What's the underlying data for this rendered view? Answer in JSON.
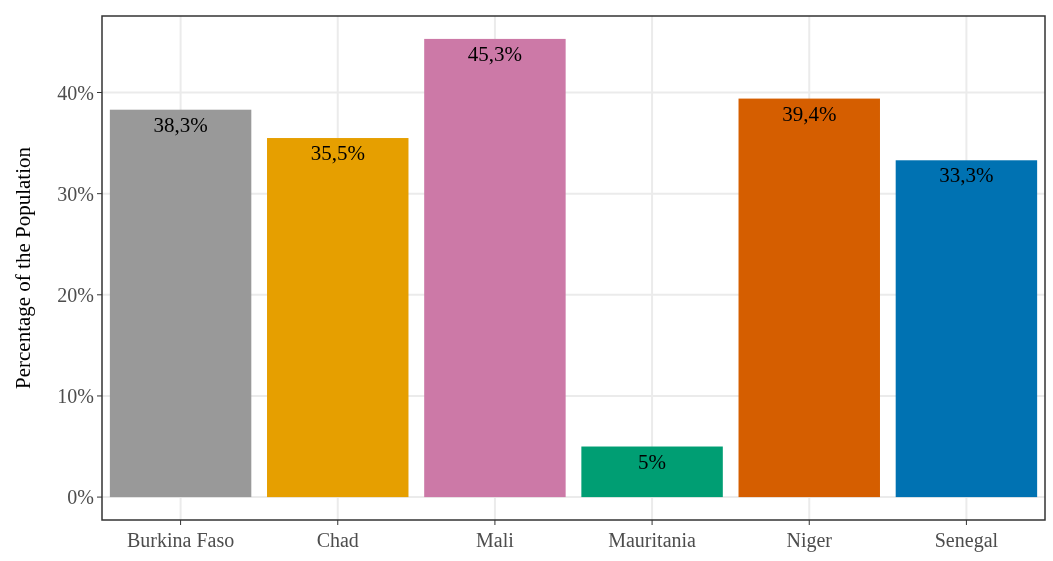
{
  "chart_data": {
    "type": "bar",
    "ylabel": "Percentage of the Population",
    "categories": [
      "Burkina Faso",
      "Chad",
      "Mali",
      "Mauritania",
      "Niger",
      "Senegal"
    ],
    "values": [
      38.3,
      35.5,
      45.3,
      5,
      39.4,
      33.3
    ],
    "colors": [
      "#999999",
      "#e69f00",
      "#cc79a7",
      "#009e73",
      "#d55e00",
      "#0072b2"
    ],
    "value_labels": [
      "38,3%",
      "35,5%",
      "45,3%",
      "5%",
      "39,4%",
      "33,3%"
    ],
    "ylim": [
      -2.265,
      47.565
    ],
    "yticks": [
      {
        "value": 0,
        "label": "0%"
      },
      {
        "value": 10,
        "label": "10%"
      },
      {
        "value": 20,
        "label": "20%"
      },
      {
        "value": 30,
        "label": "30%"
      },
      {
        "value": 40,
        "label": "40%"
      }
    ],
    "grid": true
  }
}
